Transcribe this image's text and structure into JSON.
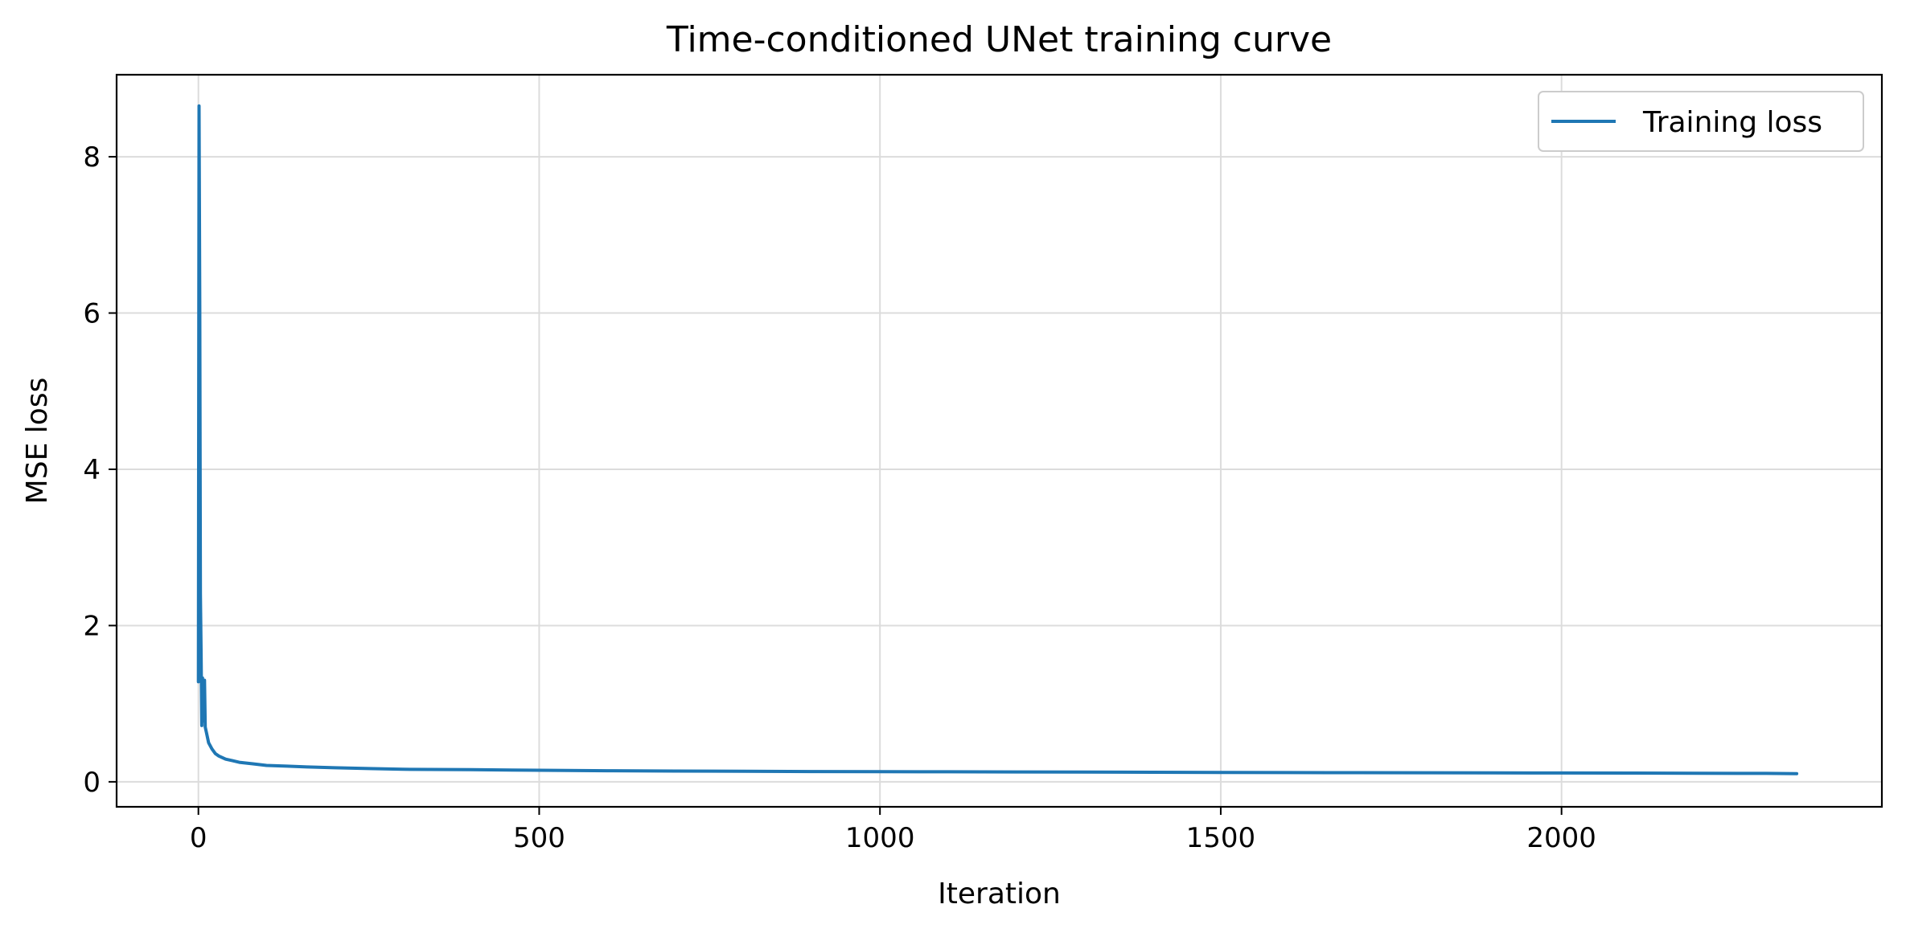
{
  "chart_data": {
    "type": "line",
    "title": "Time-conditioned UNet training curve",
    "xlabel": "Iteration",
    "ylabel": "MSE loss",
    "xlim": [
      -120,
      2470
    ],
    "ylim": [
      -0.32,
      9.05
    ],
    "xticks": [
      0,
      500,
      1000,
      1500,
      2000
    ],
    "yticks": [
      0,
      2,
      4,
      6,
      8
    ],
    "grid": true,
    "legend": {
      "position": "top-right",
      "entries": [
        "Training loss"
      ]
    },
    "series": [
      {
        "name": "Training loss",
        "color": "#1f77b4",
        "x": [
          0,
          1,
          2,
          3,
          4,
          5,
          6,
          7,
          8,
          9,
          10,
          12,
          15,
          20,
          25,
          30,
          40,
          50,
          60,
          80,
          100,
          130,
          160,
          200,
          250,
          300,
          400,
          500,
          600,
          700,
          800,
          900,
          1000,
          1100,
          1200,
          1300,
          1400,
          1500,
          1600,
          1700,
          1800,
          1900,
          2000,
          2100,
          2200,
          2300,
          2345
        ],
        "y": [
          1.28,
          8.65,
          6.1,
          2.4,
          1.6,
          0.72,
          1.33,
          0.95,
          0.78,
          1.3,
          0.7,
          0.62,
          0.5,
          0.42,
          0.36,
          0.33,
          0.29,
          0.27,
          0.25,
          0.23,
          0.21,
          0.2,
          0.19,
          0.18,
          0.17,
          0.16,
          0.155,
          0.148,
          0.142,
          0.138,
          0.135,
          0.132,
          0.13,
          0.128,
          0.126,
          0.124,
          0.122,
          0.12,
          0.118,
          0.117,
          0.116,
          0.115,
          0.113,
          0.112,
          0.11,
          0.108,
          0.105
        ]
      }
    ]
  }
}
